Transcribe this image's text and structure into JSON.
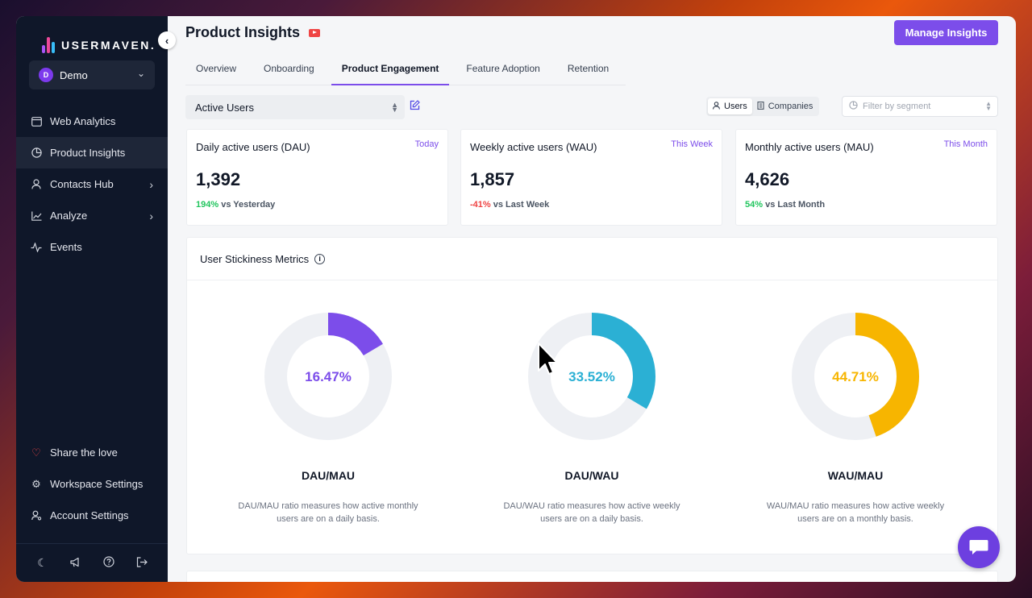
{
  "sidebar": {
    "brand": "USERMAVEN.",
    "workspace": {
      "initial": "D",
      "name": "Demo"
    },
    "items": [
      {
        "label": "Web Analytics",
        "icon": "browser-icon"
      },
      {
        "label": "Product Insights",
        "icon": "pie-chart-icon"
      },
      {
        "label": "Contacts Hub",
        "icon": "user-icon"
      },
      {
        "label": "Analyze",
        "icon": "line-chart-icon"
      },
      {
        "label": "Events",
        "icon": "activity-icon"
      }
    ],
    "bottom_items": [
      {
        "label": "Share the love",
        "icon": "heart-icon"
      },
      {
        "label": "Workspace Settings",
        "icon": "gear-icon"
      },
      {
        "label": "Account Settings",
        "icon": "user-gear-icon"
      }
    ]
  },
  "header": {
    "title": "Product Insights",
    "manage_label": "Manage Insights"
  },
  "tabs": [
    "Overview",
    "Onboarding",
    "Product Engagement",
    "Feature Adoption",
    "Retention"
  ],
  "controls": {
    "metric": "Active Users",
    "toggle_users": "Users",
    "toggle_companies": "Companies",
    "segment_placeholder": "Filter by segment"
  },
  "kpis": [
    {
      "title": "Daily active users (DAU)",
      "period": "Today",
      "value": "1,392",
      "delta": "194%",
      "compare": " vs Yesterday"
    },
    {
      "title": "Weekly active users (WAU)",
      "period": "This Week",
      "value": "1,857",
      "delta": "-41%",
      "compare": " vs Last Week"
    },
    {
      "title": "Monthly active users (MAU)",
      "period": "This Month",
      "value": "4,626",
      "delta": "54%",
      "compare": " vs Last Month"
    }
  ],
  "stickiness": {
    "title": "User Stickiness Metrics",
    "gauges": [
      {
        "value": "16.47%",
        "fraction": 0.1647,
        "color": "#7c4dea",
        "label": "DAU/MAU",
        "desc": "DAU/MAU ratio measures how active monthly users are on a daily basis."
      },
      {
        "value": "33.52%",
        "fraction": 0.3352,
        "color": "#2bb0d4",
        "label": "DAU/WAU",
        "desc": "DAU/WAU ratio measures how active weekly users are on a daily basis."
      },
      {
        "value": "44.71%",
        "fraction": 0.4471,
        "color": "#f7b500",
        "label": "WAU/MAU",
        "desc": "WAU/MAU ratio measures how active weekly users are on a monthly basis."
      }
    ]
  }
}
